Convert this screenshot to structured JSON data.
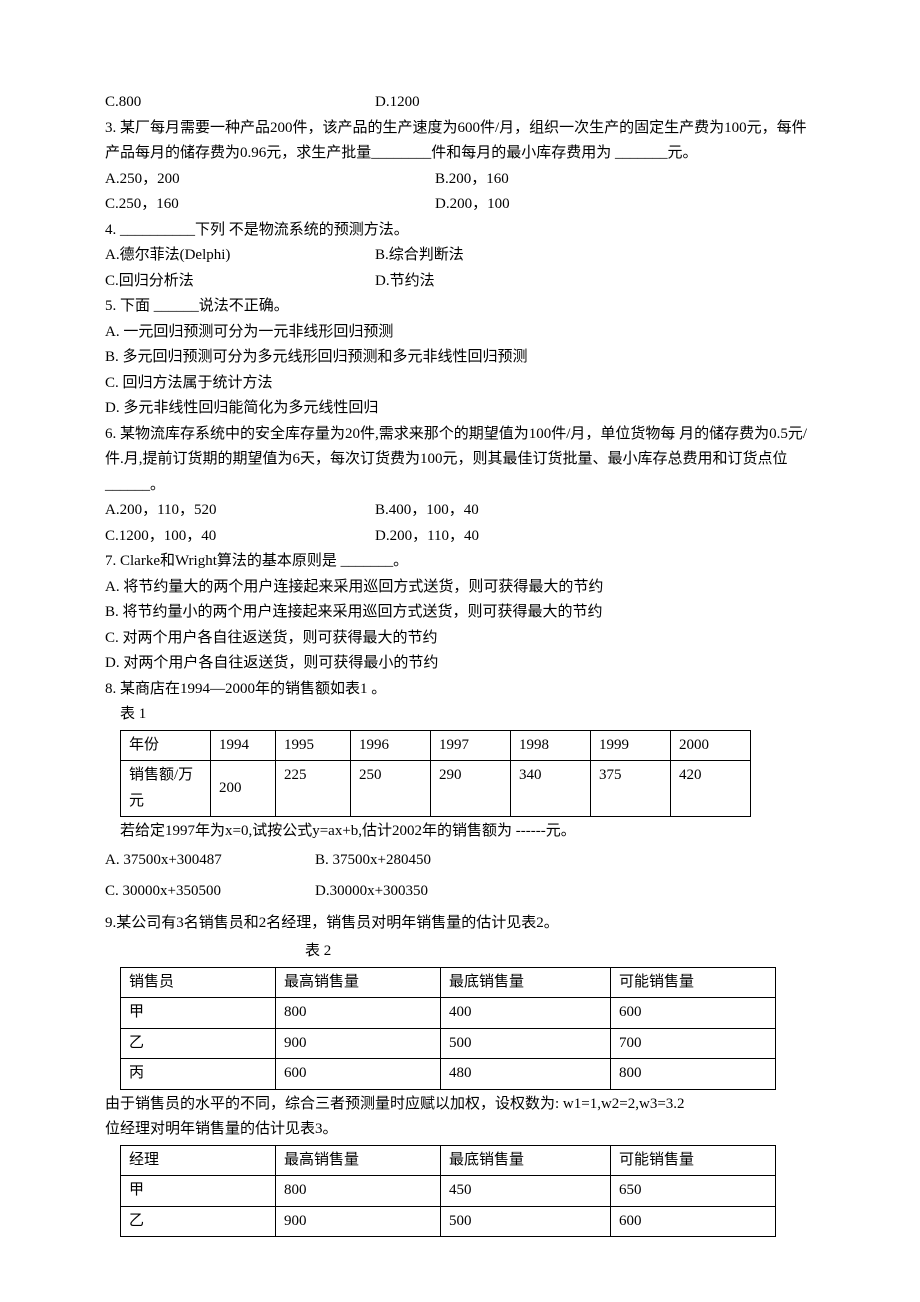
{
  "q2opts": {
    "c": "C.800",
    "d": "D.1200"
  },
  "q3": {
    "text": "3. 某厂每月需要一种产品200件，该产品的生产速度为600件/月，组织一次生产的固定生产费为100元，每件产品每月的储存费为0.96元，求生产批量________件和每月的最小库存费用为 _______元。",
    "a": "A.250，200",
    "b": "B.200，160",
    "c": "C.250，160",
    "d": "D.200，100"
  },
  "q4": {
    "text": "4. __________下列 不是物流系统的预测方法。",
    "a": "A.德尔菲法(Delphi)",
    "b": "B.综合判断法",
    "c": "C.回归分析法",
    "d": "D.节约法"
  },
  "q5": {
    "text": "5. 下面 ______说法不正确。",
    "a": "A. 一元回归预测可分为一元非线形回归预测",
    "b": "B. 多元回归预测可分为多元线形回归预测和多元非线性回归预测",
    "c": "C. 回归方法属于统计方法",
    "d": "D. 多元非线性回归能简化为多元线性回归"
  },
  "q6": {
    "text": "6. 某物流库存系统中的安全库存量为20件,需求来那个的期望值为100件/月，单位货物每 月的储存费为0.5元/件.月,提前订货期的期望值为6天，每次订货费为100元，则其最佳订货批量、最小库存总费用和订货点位 ______。",
    "a": "A.200，110，520",
    "b": "B.400，100，40",
    "c": "C.1200，100，40",
    "d": "D.200，110，40"
  },
  "q7": {
    "text": "7. Clarke和Wright算法的基本原则是 _______。",
    "a": "A. 将节约量大的两个用户连接起来采用巡回方式送货，则可获得最大的节约",
    "b": "B. 将节约量小的两个用户连接起来采用巡回方式送货，则可获得最大的节约",
    "c": "C. 对两个用户各自往返送货，则可获得最大的节约",
    "d": "D. 对两个用户各自往返送货，则可获得最小的节约"
  },
  "q8": {
    "text": "8. 某商店在1994—2000年的销售额如表1 。",
    "caption": "表 1",
    "table": {
      "widths": [
        90,
        65,
        75,
        80,
        80,
        80,
        80,
        80
      ],
      "head": [
        "年份",
        "1994",
        "1995",
        "1996",
        "1997",
        "1998",
        "1999",
        "2000"
      ],
      "r2label": "销售额/万元",
      "r2": [
        "200",
        "225",
        "250",
        "290",
        "340",
        "375",
        "420"
      ]
    },
    "post": "若给定1997年为x=0,试按公式y=ax+b,估计2002年的销售额为 ------元。",
    "a": "A. 37500x+300487",
    "b": "B. 37500x+280450",
    "c": "C. 30000x+350500",
    "d": "D.30000x+300350"
  },
  "q9": {
    "text": "9.某公司有3名销售员和2名经理，销售员对明年销售量的估计见表2。",
    "caption2": "表 2",
    "caption3": "位经理对明年销售量的估计见表3。",
    "t2": {
      "widths": [
        155,
        165,
        170,
        165
      ],
      "head": [
        "销售员",
        "最高销售量",
        "最底销售量",
        "可能销售量"
      ],
      "rows": [
        [
          "甲",
          "800",
          "400",
          "600"
        ],
        [
          "乙",
          "900",
          "500",
          "700"
        ],
        [
          "丙",
          "600",
          "480",
          "800"
        ]
      ]
    },
    "mid": "由于销售员的水平的不同，综合三者预测量时应赋以加权，设权数为: w1=1,w2=2,w3=3.2",
    "t3": {
      "widths": [
        155,
        165,
        170,
        165
      ],
      "head": [
        "经理",
        "最高销售量",
        "最底销售量",
        "可能销售量"
      ],
      "rows": [
        [
          "甲",
          "800",
          "450",
          "650"
        ],
        [
          "乙",
          "900",
          "500",
          "600"
        ]
      ]
    }
  }
}
